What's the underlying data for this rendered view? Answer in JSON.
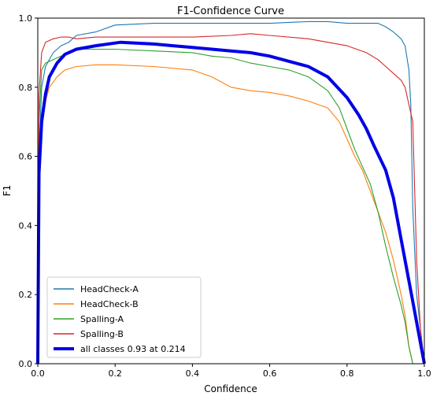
{
  "chart_data": {
    "type": "line",
    "title": "F1-Confidence Curve",
    "xlabel": "Confidence",
    "ylabel": "F1",
    "xlim": [
      0.0,
      1.0
    ],
    "ylim": [
      0.0,
      1.0
    ],
    "xticks": [
      "0.0",
      "0.2",
      "0.4",
      "0.6",
      "0.8",
      "1.0"
    ],
    "yticks": [
      "0.0",
      "0.2",
      "0.4",
      "0.6",
      "0.8",
      "1.0"
    ],
    "grid": false,
    "legend_position": "lower-left",
    "series": [
      {
        "name": "HeadCheck-A",
        "color": "#1f77b4",
        "x": [
          0.0,
          0.003,
          0.01,
          0.02,
          0.04,
          0.06,
          0.08,
          0.1,
          0.15,
          0.2,
          0.3,
          0.4,
          0.5,
          0.6,
          0.7,
          0.75,
          0.8,
          0.85,
          0.88,
          0.9,
          0.92,
          0.94,
          0.95,
          0.96,
          0.965,
          0.97,
          0.98,
          1.0
        ],
        "y": [
          0.0,
          0.6,
          0.8,
          0.86,
          0.9,
          0.92,
          0.93,
          0.95,
          0.96,
          0.98,
          0.985,
          0.985,
          0.985,
          0.985,
          0.99,
          0.99,
          0.985,
          0.985,
          0.985,
          0.975,
          0.96,
          0.94,
          0.92,
          0.85,
          0.75,
          0.45,
          0.2,
          0.0
        ]
      },
      {
        "name": "HeadCheck-B",
        "color": "#ff7f0e",
        "x": [
          0.0,
          0.003,
          0.01,
          0.02,
          0.03,
          0.05,
          0.07,
          0.1,
          0.15,
          0.2,
          0.3,
          0.4,
          0.45,
          0.5,
          0.55,
          0.6,
          0.65,
          0.7,
          0.75,
          0.78,
          0.8,
          0.82,
          0.84,
          0.86,
          0.88,
          0.9,
          0.92,
          0.94,
          0.95,
          0.96,
          0.97
        ],
        "y": [
          0.0,
          0.45,
          0.7,
          0.76,
          0.8,
          0.83,
          0.85,
          0.86,
          0.865,
          0.865,
          0.86,
          0.85,
          0.83,
          0.8,
          0.79,
          0.785,
          0.775,
          0.76,
          0.74,
          0.7,
          0.65,
          0.6,
          0.56,
          0.5,
          0.44,
          0.38,
          0.3,
          0.2,
          0.14,
          0.05,
          0.0
        ]
      },
      {
        "name": "Spalling-A",
        "color": "#2ca02c",
        "x": [
          0.0,
          0.003,
          0.01,
          0.02,
          0.04,
          0.06,
          0.08,
          0.1,
          0.2,
          0.3,
          0.4,
          0.45,
          0.5,
          0.55,
          0.6,
          0.65,
          0.7,
          0.75,
          0.78,
          0.8,
          0.82,
          0.84,
          0.86,
          0.88,
          0.9,
          0.92,
          0.94,
          0.95,
          0.96,
          0.97
        ],
        "y": [
          0.0,
          0.7,
          0.85,
          0.87,
          0.88,
          0.89,
          0.9,
          0.91,
          0.91,
          0.905,
          0.9,
          0.89,
          0.885,
          0.87,
          0.86,
          0.85,
          0.83,
          0.79,
          0.74,
          0.68,
          0.62,
          0.57,
          0.52,
          0.44,
          0.34,
          0.25,
          0.17,
          0.12,
          0.05,
          0.0
        ]
      },
      {
        "name": "Spalling-B",
        "color": "#d62728",
        "x": [
          0.0,
          0.003,
          0.01,
          0.02,
          0.04,
          0.06,
          0.08,
          0.1,
          0.15,
          0.2,
          0.3,
          0.4,
          0.5,
          0.55,
          0.6,
          0.7,
          0.75,
          0.8,
          0.85,
          0.88,
          0.9,
          0.92,
          0.94,
          0.95,
          0.96,
          0.97,
          0.98,
          0.99,
          1.0
        ],
        "y": [
          0.0,
          0.78,
          0.9,
          0.93,
          0.94,
          0.945,
          0.945,
          0.94,
          0.945,
          0.945,
          0.945,
          0.945,
          0.95,
          0.955,
          0.95,
          0.94,
          0.93,
          0.92,
          0.9,
          0.88,
          0.86,
          0.84,
          0.82,
          0.8,
          0.75,
          0.7,
          0.3,
          0.1,
          0.0
        ]
      },
      {
        "name": "all classes 0.93 at 0.214",
        "color": "#0000e6",
        "x": [
          0.0,
          0.003,
          0.01,
          0.02,
          0.03,
          0.05,
          0.07,
          0.1,
          0.15,
          0.214,
          0.3,
          0.35,
          0.4,
          0.45,
          0.5,
          0.55,
          0.6,
          0.65,
          0.7,
          0.75,
          0.8,
          0.83,
          0.85,
          0.87,
          0.9,
          0.92,
          0.94,
          0.96,
          0.98,
          0.99,
          1.0
        ],
        "y": [
          0.0,
          0.55,
          0.7,
          0.78,
          0.83,
          0.87,
          0.895,
          0.91,
          0.92,
          0.93,
          0.925,
          0.92,
          0.915,
          0.91,
          0.905,
          0.9,
          0.89,
          0.875,
          0.86,
          0.83,
          0.77,
          0.72,
          0.68,
          0.63,
          0.56,
          0.48,
          0.36,
          0.24,
          0.12,
          0.06,
          0.0
        ]
      }
    ]
  }
}
